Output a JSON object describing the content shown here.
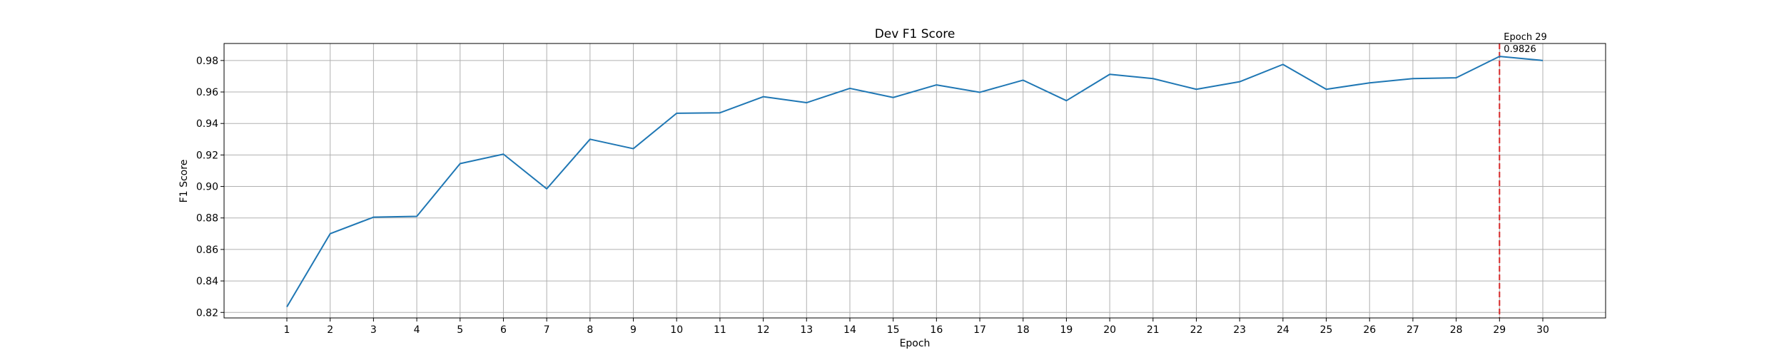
{
  "chart_data": {
    "type": "line",
    "title": "Dev F1 Score",
    "xlabel": "Epoch",
    "ylabel": "F1 Score",
    "x": [
      1,
      2,
      3,
      4,
      5,
      6,
      7,
      8,
      9,
      10,
      11,
      12,
      13,
      14,
      15,
      16,
      17,
      18,
      19,
      20,
      21,
      22,
      23,
      24,
      25,
      26,
      27,
      28,
      29,
      30
    ],
    "series": [
      {
        "values": [
          0.8235,
          0.87,
          0.8805,
          0.881,
          0.9145,
          0.9205,
          0.8985,
          0.93,
          0.924,
          0.9465,
          0.9468,
          0.957,
          0.9532,
          0.9623,
          0.9565,
          0.9645,
          0.9598,
          0.9675,
          0.9545,
          0.9712,
          0.9685,
          0.9617,
          0.9665,
          0.9775,
          0.9617,
          0.9658,
          0.9685,
          0.969,
          0.9826,
          0.98
        ],
        "color": "#1f77b4"
      }
    ],
    "xlim": [
      -0.45,
      31.45
    ],
    "ylim": [
      0.8165,
      0.9908
    ],
    "xticks": [
      "1",
      "2",
      "3",
      "4",
      "5",
      "6",
      "7",
      "8",
      "9",
      "10",
      "11",
      "12",
      "13",
      "14",
      "15",
      "16",
      "17",
      "18",
      "19",
      "20",
      "21",
      "22",
      "23",
      "24",
      "25",
      "26",
      "27",
      "28",
      "29",
      "30"
    ],
    "yticks": [
      0.82,
      0.84,
      0.86,
      0.88,
      0.9,
      0.92,
      0.94,
      0.96,
      0.98
    ],
    "ytick_labels": [
      "0.82",
      "0.84",
      "0.86",
      "0.88",
      "0.90",
      "0.92",
      "0.94",
      "0.96",
      "0.98"
    ],
    "grid": true,
    "best_marker": {
      "epoch": 29,
      "value": 0.9826,
      "color": "#d62728",
      "style": "dashed",
      "label_line1": "Epoch 29",
      "label_line2": "0.9826"
    }
  }
}
